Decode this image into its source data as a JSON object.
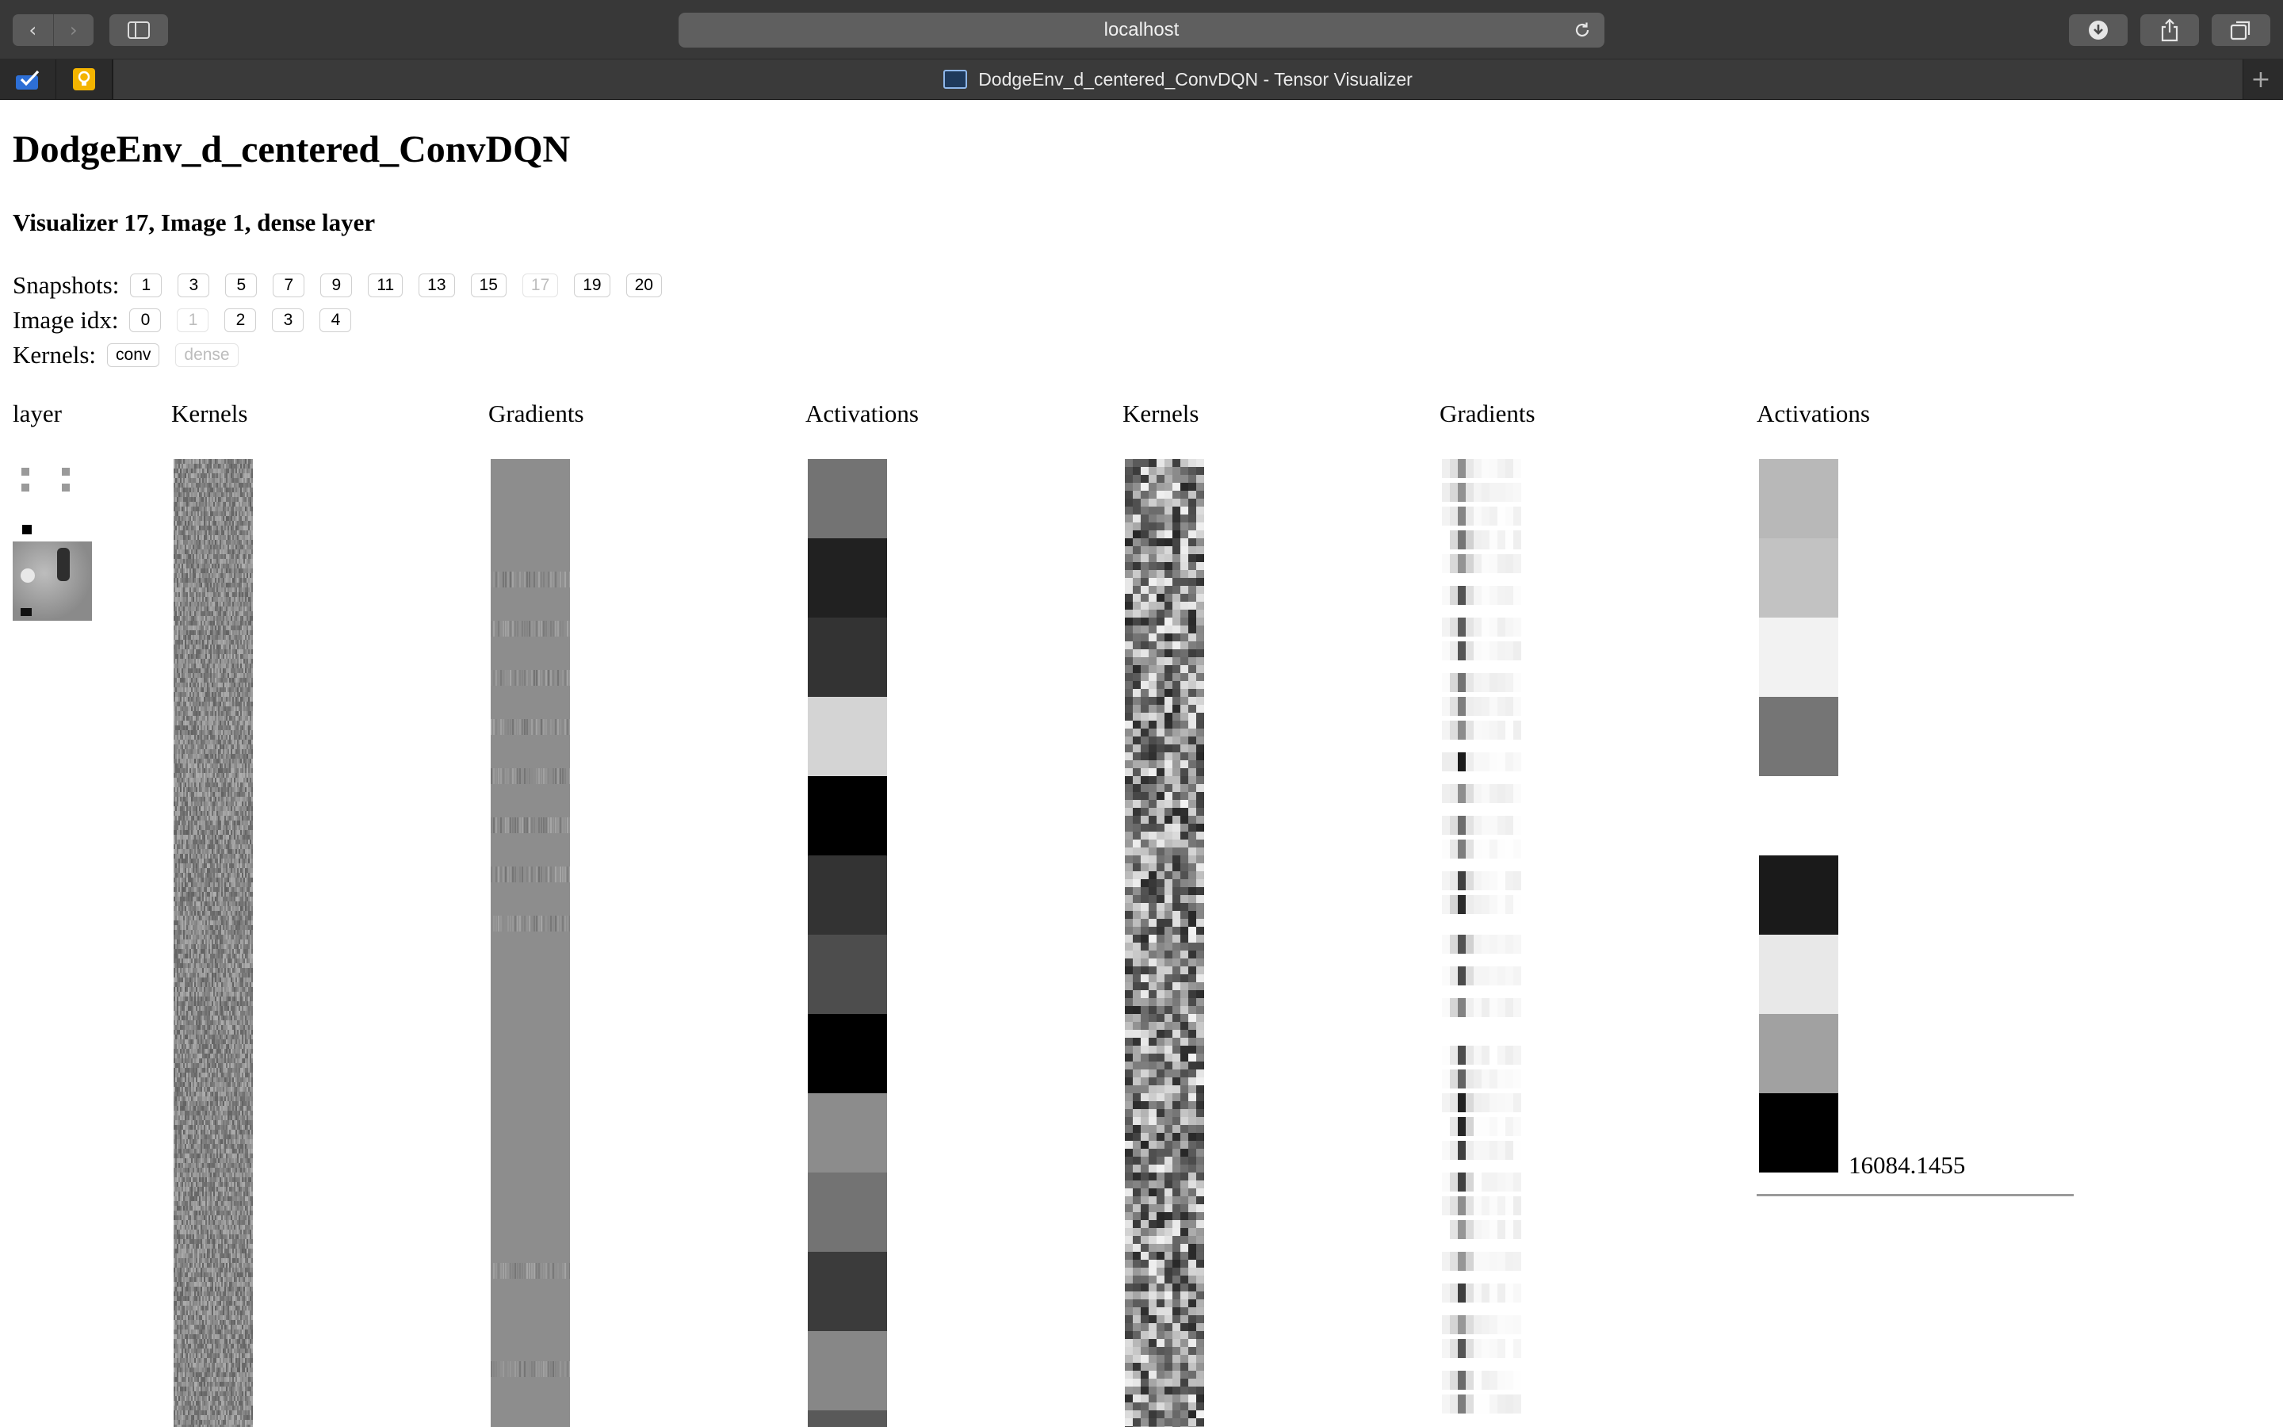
{
  "browser": {
    "url": "localhost",
    "tab_title": "DodgeEnv_d_centered_ConvDQN - Tensor Visualizer"
  },
  "page": {
    "title": "DodgeEnv_d_centered_ConvDQN",
    "subtitle": "Visualizer 17, Image 1, dense layer",
    "snapshots": {
      "label": "Snapshots:",
      "items": [
        "1",
        "3",
        "5",
        "7",
        "9",
        "11",
        "13",
        "15",
        "17",
        "19",
        "20"
      ],
      "selected": "17"
    },
    "image_idx": {
      "label": "Image idx:",
      "items": [
        "0",
        "1",
        "2",
        "3",
        "4"
      ],
      "selected": "1"
    },
    "kernels": {
      "label": "Kernels:",
      "items": [
        "conv",
        "dense"
      ],
      "selected": "dense"
    },
    "columns": [
      "layer",
      "Kernels",
      "Gradients",
      "Activations",
      "Kernels",
      "Gradients",
      "Activations"
    ],
    "second_activation_scale": "16084.1455",
    "first_activations": [
      0.45,
      0.13,
      0.2,
      0.83,
      0.0,
      0.2,
      0.3,
      0.0,
      0.55,
      0.45,
      0.23,
      0.53,
      0.35
    ],
    "second_activations": [
      0.72,
      0.76,
      0.95,
      0.46,
      1.0,
      0.1,
      0.91,
      0.63,
      0.0
    ]
  },
  "colors": {
    "toolbar_bg": "#383838",
    "tabbar_bg": "#2b2b2b",
    "page_bg": "#ffffff",
    "disabled_text": "#bdbdbd"
  }
}
